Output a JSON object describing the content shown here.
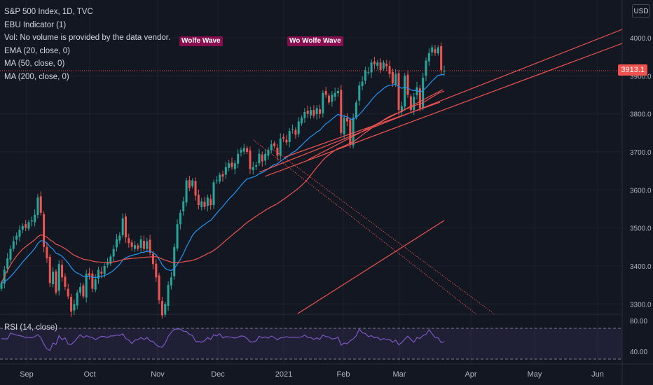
{
  "header": {
    "symbol_line": "S&P 500 Index, 1D, TVC",
    "indicators": [
      "EBU Indicator (1)",
      "Vol: No volume is provided by the data vendor.",
      "EMA (20, close, 0)",
      "MA (50, close, 0)",
      "MA (200, close, 0)"
    ],
    "currency": "USD"
  },
  "annotations": {
    "wolfe_wave": "Wolfe Wave",
    "wo_wolfe_wave": "Wo Wolfe Wave"
  },
  "last_price": "3913.1",
  "rsi": {
    "label": "RSI (14, close)",
    "upper": "80.00",
    "lower": "40.00"
  },
  "colors": {
    "bg": "#131722",
    "up": "#26a69a",
    "down": "#ef5350",
    "ema": "#2196f3",
    "ma": "#ef5350",
    "rsi": "#7e57c2",
    "grid": "#1e222d",
    "badge": "#880e4f"
  },
  "chart_data": {
    "type": "candlestick",
    "y_ticks": [
      "4000.0",
      "3900.0",
      "3800.0",
      "3700.0",
      "3600.0",
      "3500.0",
      "3400.0",
      "3300.0"
    ],
    "x_ticks": [
      "Sep",
      "Oct",
      "Nov",
      "Dec",
      "2021",
      "Feb",
      "Mar",
      "Apr",
      "May",
      "Jun"
    ],
    "closes": [
      3355,
      3390,
      3420,
      3445,
      3465,
      3480,
      3495,
      3505,
      3500,
      3515,
      3520,
      3535,
      3580,
      3540,
      3450,
      3420,
      3355,
      3385,
      3330,
      3405,
      3370,
      3345,
      3320,
      3280,
      3300,
      3330,
      3345,
      3320,
      3380,
      3375,
      3340,
      3365,
      3390,
      3380,
      3400,
      3410,
      3425,
      3445,
      3470,
      3480,
      3525,
      3475,
      3460,
      3450,
      3455,
      3445,
      3470,
      3445,
      3465,
      3435,
      3405,
      3370,
      3310,
      3270,
      3300,
      3350,
      3370,
      3450,
      3510,
      3540,
      3570,
      3625,
      3605,
      3625,
      3585,
      3560,
      3570,
      3555,
      3580,
      3560,
      3620,
      3625,
      3640,
      3635,
      3660,
      3670,
      3660,
      3670,
      3695,
      3705,
      3710,
      3700,
      3655,
      3660,
      3665,
      3695,
      3675,
      3695,
      3705,
      3720,
      3715,
      3690,
      3735,
      3735,
      3725,
      3755,
      3760,
      3745,
      3780,
      3790,
      3805,
      3800,
      3810,
      3795,
      3815,
      3800,
      3855,
      3850,
      3830,
      3850,
      3855,
      3860,
      3750,
      3790,
      3780,
      3720,
      3790,
      3830,
      3875,
      3885,
      3915,
      3910,
      3935,
      3930,
      3935,
      3915,
      3935,
      3925,
      3905,
      3880,
      3905,
      3810,
      3820,
      3900,
      3850,
      3810,
      3845,
      3870,
      3815,
      3895,
      3940,
      3960,
      3975,
      3960,
      3975,
      3915,
      3913
    ]
  }
}
